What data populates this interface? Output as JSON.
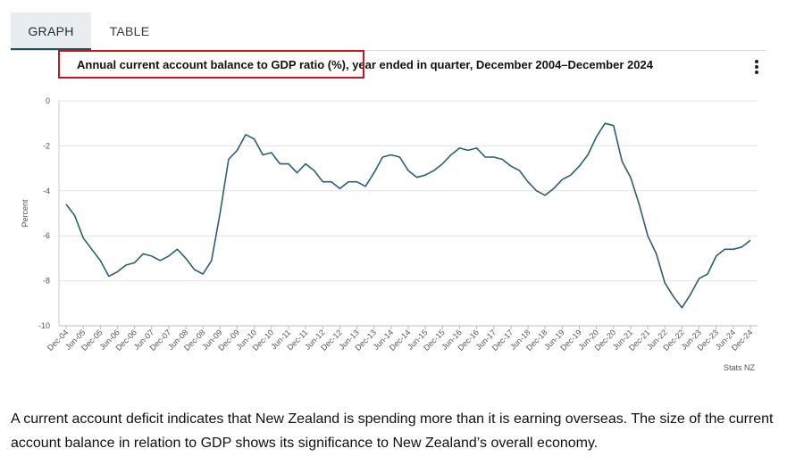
{
  "tabs": {
    "graph": "GRAPH",
    "table": "TABLE"
  },
  "chart_data": {
    "type": "line",
    "title": "Annual current account balance to GDP ratio (%), year ended in quarter, December 2004–December 2024",
    "highlighted_title_part": "Annual current account balance to GDP ratio (%)",
    "ylabel": "Percent",
    "xlabel": "",
    "ylim": [
      -10,
      0
    ],
    "yticks": [
      "0",
      "-2",
      "-4",
      "-6",
      "-8",
      "-10"
    ],
    "ytick_values": [
      0,
      -2,
      -4,
      -6,
      -8,
      -10
    ],
    "grid": true,
    "line_color": "#2b5f73",
    "xtick_labels": [
      "Dec-04",
      "Jun-05",
      "Dec-05",
      "Jun-06",
      "Dec-06",
      "Jun-07",
      "Dec-07",
      "Jun-08",
      "Dec-08",
      "Jun-09",
      "Dec-09",
      "Jun-10",
      "Dec-10",
      "Jun-11",
      "Dec-11",
      "Jun-12",
      "Dec-12",
      "Jun-13",
      "Dec-13",
      "Jun-14",
      "Dec-14",
      "Jun-15",
      "Dec-15",
      "Jun-16",
      "Dec-16",
      "Jun-17",
      "Dec-17",
      "Jun-18",
      "Dec-18",
      "Jun-19",
      "Dec-19",
      "Jun-20",
      "Dec-20",
      "Jun-21",
      "Dec-21",
      "Jun-22",
      "Dec-22",
      "Jun-23",
      "Dec-23",
      "Jun-24",
      "Dec-24"
    ],
    "x": [
      "Dec-04",
      "Mar-05",
      "Jun-05",
      "Sep-05",
      "Dec-05",
      "Mar-06",
      "Jun-06",
      "Sep-06",
      "Dec-06",
      "Mar-07",
      "Jun-07",
      "Sep-07",
      "Dec-07",
      "Mar-08",
      "Jun-08",
      "Sep-08",
      "Dec-08",
      "Mar-09",
      "Jun-09",
      "Sep-09",
      "Dec-09",
      "Mar-10",
      "Jun-10",
      "Sep-10",
      "Dec-10",
      "Mar-11",
      "Jun-11",
      "Sep-11",
      "Dec-11",
      "Mar-12",
      "Jun-12",
      "Sep-12",
      "Dec-12",
      "Mar-13",
      "Jun-13",
      "Sep-13",
      "Dec-13",
      "Mar-14",
      "Jun-14",
      "Sep-14",
      "Dec-14",
      "Mar-15",
      "Jun-15",
      "Sep-15",
      "Dec-15",
      "Mar-16",
      "Jun-16",
      "Sep-16",
      "Dec-16",
      "Mar-17",
      "Jun-17",
      "Sep-17",
      "Dec-17",
      "Mar-18",
      "Jun-18",
      "Sep-18",
      "Dec-18",
      "Mar-19",
      "Jun-19",
      "Sep-19",
      "Dec-19",
      "Mar-20",
      "Jun-20",
      "Sep-20",
      "Dec-20",
      "Mar-21",
      "Jun-21",
      "Sep-21",
      "Dec-21",
      "Mar-22",
      "Jun-22",
      "Sep-22",
      "Dec-22",
      "Mar-23",
      "Jun-23",
      "Sep-23",
      "Dec-23",
      "Mar-24",
      "Jun-24",
      "Sep-24",
      "Dec-24"
    ],
    "series": [
      {
        "values": [
          -4.6,
          -5.1,
          -6.1,
          -6.6,
          -7.1,
          -7.8,
          -7.6,
          -7.3,
          -7.2,
          -6.8,
          -6.9,
          -7.1,
          -6.9,
          -6.6,
          -7.0,
          -7.5,
          -7.7,
          -7.1,
          -5.0,
          -2.6,
          -2.2,
          -1.5,
          -1.7,
          -2.4,
          -2.3,
          -2.8,
          -2.8,
          -3.2,
          -2.8,
          -3.1,
          -3.6,
          -3.6,
          -3.9,
          -3.6,
          -3.6,
          -3.8,
          -3.2,
          -2.5,
          -2.4,
          -2.5,
          -3.1,
          -3.4,
          -3.3,
          -3.1,
          -2.8,
          -2.4,
          -2.1,
          -2.2,
          -2.1,
          -2.5,
          -2.5,
          -2.6,
          -2.9,
          -3.1,
          -3.6,
          -4.0,
          -4.2,
          -3.9,
          -3.5,
          -3.3,
          -2.9,
          -2.4,
          -1.6,
          -1.0,
          -1.1,
          -2.7,
          -3.4,
          -4.6,
          -6.0,
          -6.8,
          -8.1,
          -8.7,
          -9.2,
          -8.6,
          -7.9,
          -7.7,
          -6.9,
          -6.6,
          -6.6,
          -6.5,
          -6.2
        ]
      }
    ]
  },
  "source": "Stats NZ",
  "menu": {
    "icon": "kebab-menu-icon"
  },
  "description": "A current account deficit indicates that New Zealand is spending more than it is earning overseas. The size of the current account balance in relation to GDP shows its significance to New Zealand’s overall economy."
}
